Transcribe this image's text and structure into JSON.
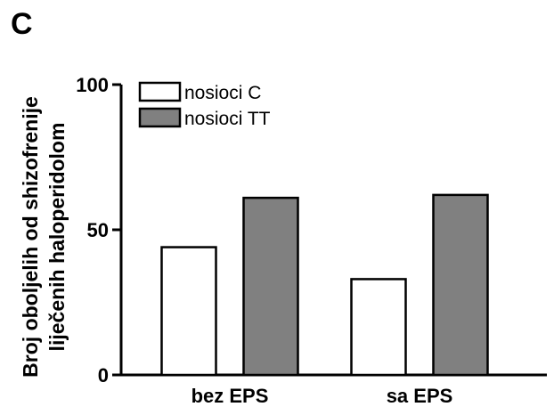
{
  "panel_label": "C",
  "chart_data": {
    "type": "bar",
    "categories": [
      "bez EPS",
      "sa EPS"
    ],
    "series": [
      {
        "name": "nosioci C",
        "values": [
          44,
          33
        ],
        "color": "#ffffff"
      },
      {
        "name": "nosioci TT",
        "values": [
          61,
          62
        ],
        "color": "#808080"
      }
    ],
    "ylabel_lines": [
      "Broj oboljelih od shizofrenije",
      "liječenih haloperidolom"
    ],
    "ylim": [
      0,
      100
    ],
    "yticks": [
      0,
      50,
      100
    ],
    "grid": false,
    "legend_position": "top-left"
  }
}
